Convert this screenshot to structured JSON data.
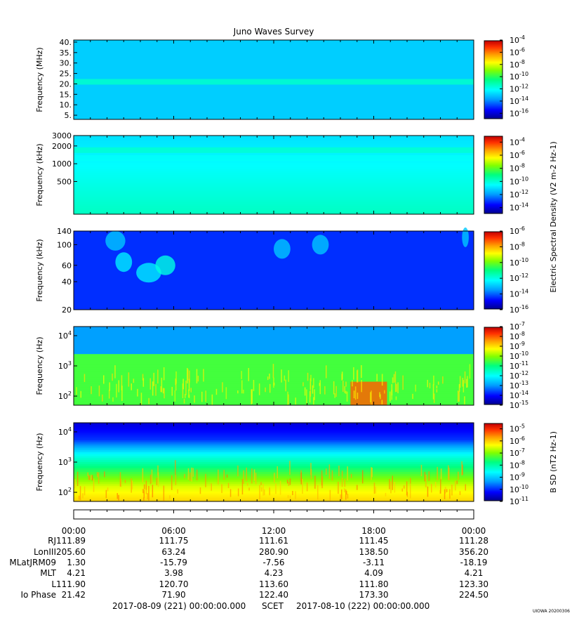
{
  "title": "Juno Waves Survey",
  "footer": {
    "start": "2017-08-09 (221) 00:00:00.000",
    "scet": "SCET",
    "end": "2017-08-10 (222) 00:00:00.000",
    "stamp": "UIOWA 20200306"
  },
  "colors": {
    "spectrum": [
      "#00008f",
      "#0000ff",
      "#00a0ff",
      "#00ffff",
      "#00ff80",
      "#80ff00",
      "#ffff00",
      "#ffa000",
      "#ff3000",
      "#c00000"
    ]
  },
  "time_axis": {
    "tick_labels": [
      "00:00",
      "06:00",
      "12:00",
      "18:00",
      "00:00"
    ],
    "tick_values_hours": [
      0,
      6,
      12,
      18,
      24
    ]
  },
  "ephemeris": {
    "row_labels": [
      "RJ",
      "LonIII",
      "MLatJRM09",
      "MLT",
      "L",
      "Io Phase"
    ],
    "rows": [
      [
        "111.89",
        "111.75",
        "111.61",
        "111.45",
        "111.28"
      ],
      [
        "205.60",
        "63.24",
        "280.90",
        "138.50",
        "356.20"
      ],
      [
        "1.30",
        "-15.79",
        "-7.56",
        "-3.11",
        "-18.19"
      ],
      [
        "4.21",
        "3.98",
        "4.23",
        "4.09",
        "4.21"
      ],
      [
        "111.90",
        "120.70",
        "113.60",
        "111.80",
        "123.30"
      ],
      [
        "21.42",
        "71.90",
        "122.40",
        "173.30",
        "224.50"
      ]
    ]
  },
  "chart_data": [
    {
      "type": "heatmap",
      "panel": "HFR high",
      "ylabel": "Frequency (MHz)",
      "y_ticks": [
        "40.",
        "35.",
        "30.",
        "25.",
        "20.",
        "15.",
        "10.",
        "5."
      ],
      "y_tick_values": [
        40,
        35,
        30,
        25,
        20,
        15,
        10,
        5
      ],
      "ylim": [
        3,
        41
      ],
      "yscale": "linear",
      "x_range_hours": [
        0,
        24
      ],
      "colorbar_ticks": [
        "10-4",
        "10-6",
        "10-8",
        "10-10",
        "10-12",
        "10-14",
        "10-16"
      ],
      "colorbar_range_exp": [
        -17,
        -4
      ],
      "background_level_exp": -13,
      "bands": [
        {
          "freq": 21,
          "level_exp": -11.5
        }
      ]
    },
    {
      "type": "heatmap",
      "panel": "HFR low",
      "ylabel": "Frequency (kHz)",
      "y_ticks": [
        "3000",
        "2000",
        "1000",
        "500"
      ],
      "y_tick_values": [
        3000,
        2000,
        1000,
        500
      ],
      "ylim": [
        140,
        3000
      ],
      "yscale": "log",
      "x_range_hours": [
        0,
        24
      ],
      "colorbar_ticks": [
        "10-4",
        "10-6",
        "10-8",
        "10-10",
        "10-12",
        "10-14"
      ],
      "colorbar_range_exp": [
        -15,
        -3
      ],
      "colorbar_label": "Electric Spectral Density (V2 m-2 Hz-1)",
      "background_level_exp": -11,
      "bands": [
        {
          "freq": 1700,
          "level_exp": -10
        },
        {
          "freq": 1250,
          "level_exp": -10.5
        }
      ]
    },
    {
      "type": "heatmap",
      "panel": "LFR high",
      "ylabel": "Frequency (kHz)",
      "y_ticks": [
        "140",
        "100",
        "60",
        "40",
        "20"
      ],
      "y_tick_values": [
        140,
        100,
        60,
        40,
        20
      ],
      "ylim": [
        20,
        140
      ],
      "yscale": "log",
      "x_range_hours": [
        0,
        24
      ],
      "colorbar_ticks": [
        "10-6",
        "10-8",
        "10-10",
        "10-12",
        "10-14",
        "10-16"
      ],
      "colorbar_range_exp": [
        -16,
        -6
      ],
      "background_level_exp": -14.5,
      "bursts": [
        {
          "t": 2.5,
          "freq": 110,
          "dur": 1.2,
          "level_exp": -13
        },
        {
          "t": 3.0,
          "freq": 65,
          "dur": 1.0,
          "level_exp": -12.5
        },
        {
          "t": 4.5,
          "freq": 50,
          "dur": 1.5,
          "level_exp": -12.5
        },
        {
          "t": 5.5,
          "freq": 60,
          "dur": 1.2,
          "level_exp": -12
        },
        {
          "t": 12.5,
          "freq": 90,
          "dur": 1.0,
          "level_exp": -13
        },
        {
          "t": 14.8,
          "freq": 100,
          "dur": 1.0,
          "level_exp": -13
        },
        {
          "t": 23.5,
          "freq": 120,
          "dur": 0.4,
          "level_exp": -13
        }
      ]
    },
    {
      "type": "heatmap",
      "panel": "LFR low",
      "ylabel": "Frequency (Hz)",
      "y_ticks": [
        "10^4",
        "10^3",
        "10^2"
      ],
      "y_tick_values": [
        10000,
        1000,
        100
      ],
      "ylim": [
        50,
        20000
      ],
      "yscale": "log",
      "x_range_hours": [
        0,
        24
      ],
      "colorbar_ticks": [
        "10-7",
        "10-8",
        "10-9",
        "10-10",
        "10-11",
        "10-12",
        "10-13",
        "10-14",
        "10-15"
      ],
      "colorbar_range_exp": [
        -15,
        -7
      ],
      "background_level_exp": -11,
      "features": [
        {
          "freq_low": 2500,
          "freq_high": 20000,
          "level_exp": -13
        },
        {
          "freq_low": 50,
          "freq_high": 2500,
          "level_exp": -10.5
        }
      ],
      "hotspots": [
        {
          "t_start": 16.6,
          "t_end": 18.8,
          "freq_low": 50,
          "freq_high": 300,
          "level_exp": -8
        }
      ]
    },
    {
      "type": "heatmap",
      "panel": "Magnetic",
      "ylabel": "Frequency (Hz)",
      "y_ticks": [
        "10^4",
        "10^3",
        "10^2"
      ],
      "y_tick_values": [
        10000,
        1000,
        100
      ],
      "ylim": [
        50,
        20000
      ],
      "yscale": "log",
      "x_range_hours": [
        0,
        24
      ],
      "colorbar_ticks": [
        "10-5",
        "10-6",
        "10-7",
        "10-8",
        "10-9",
        "10-10",
        "10-11"
      ],
      "colorbar_range_exp": [
        -11,
        -4.5
      ],
      "colorbar_label": "B SD (nT2 Hz-1)",
      "profile": [
        {
          "freq": 20000,
          "level_exp": -10.5
        },
        {
          "freq": 5000,
          "level_exp": -10
        },
        {
          "freq": 1000,
          "level_exp": -8.5
        },
        {
          "freq": 300,
          "level_exp": -7.5
        },
        {
          "freq": 100,
          "level_exp": -6.5
        },
        {
          "freq": 50,
          "level_exp": -6
        }
      ]
    }
  ]
}
